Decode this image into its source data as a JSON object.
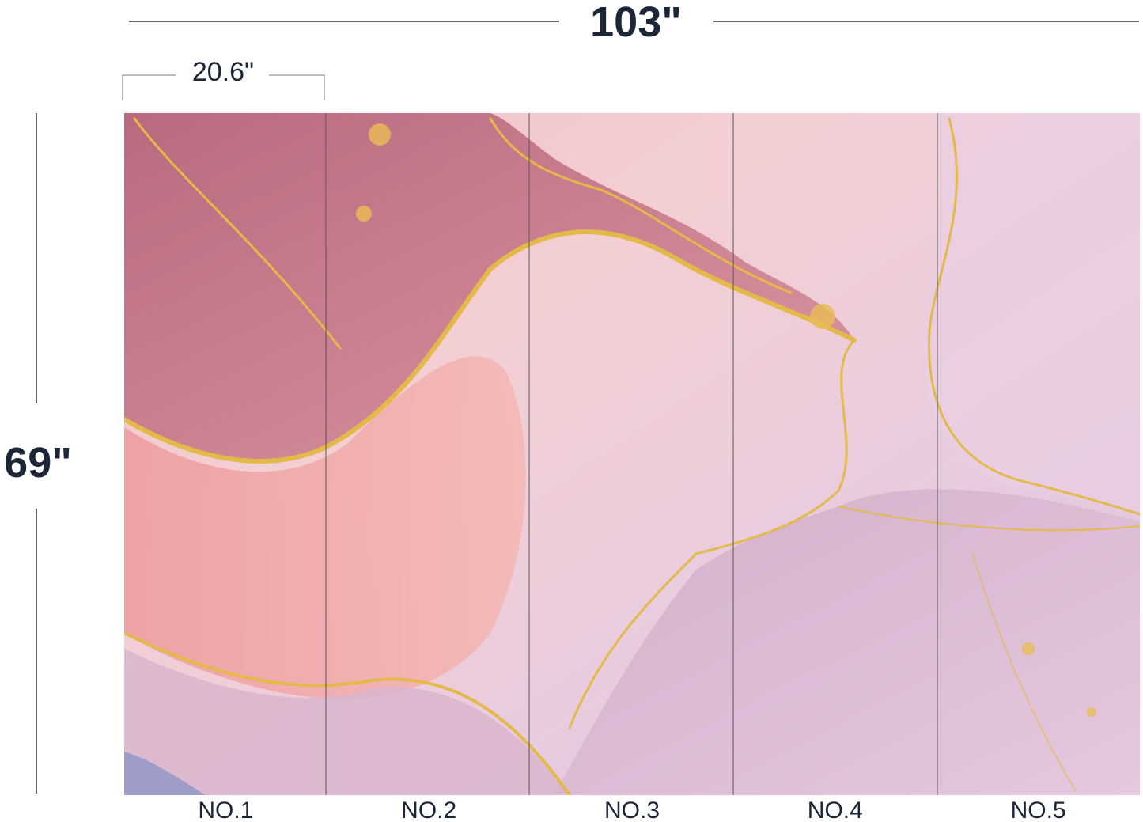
{
  "total_width": "103\"",
  "panel_width": "20.6\"",
  "height": "69\"",
  "panels": [
    "NO.1",
    "NO.2",
    "NO.3",
    "NO.4",
    "NO.5"
  ]
}
